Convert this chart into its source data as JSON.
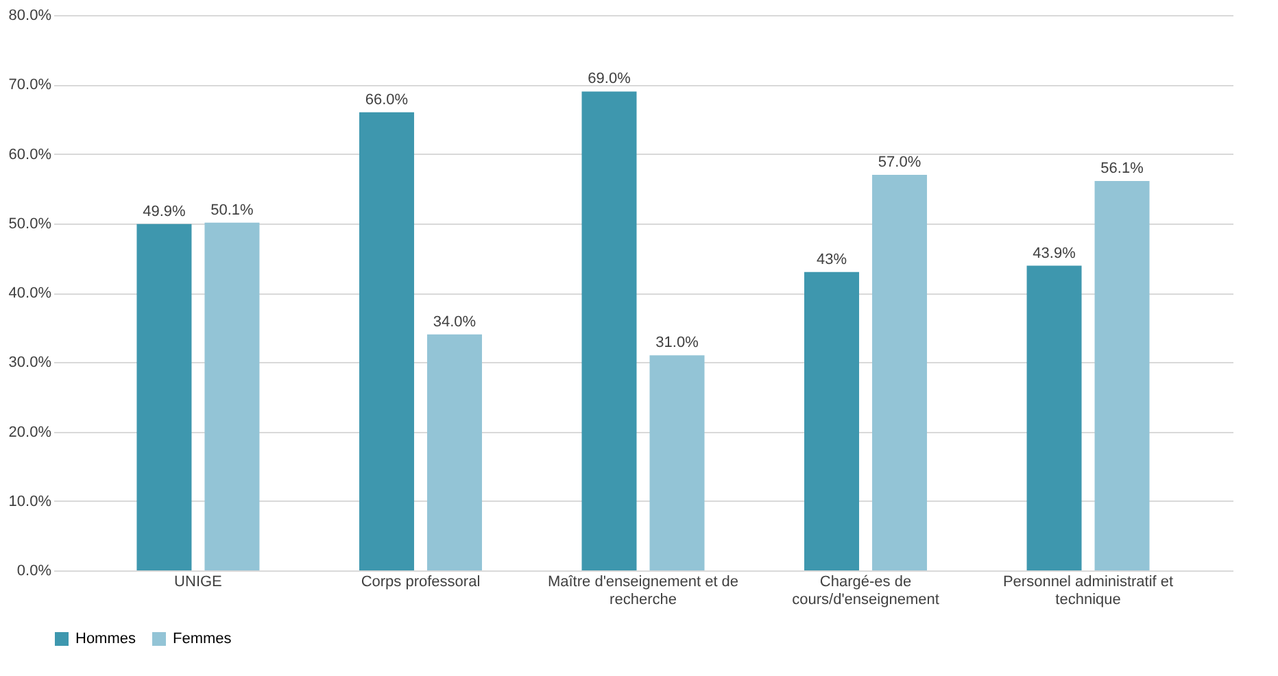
{
  "chart_data": {
    "type": "bar",
    "categories": [
      "UNIGE",
      "Corps professoral",
      "Maître d'enseignement et de recherche",
      "Chargé-es de cours/d'enseignement",
      "Personnel administratif et technique"
    ],
    "series": [
      {
        "name": "Hommes",
        "color": "#3e97ae",
        "values": [
          49.9,
          66.0,
          69.0,
          43,
          43.9
        ],
        "value_labels": [
          "49.9%",
          "66.0%",
          "69.0%",
          "43%",
          "43.9%"
        ]
      },
      {
        "name": "Femmes",
        "color": "#93c4d6",
        "values": [
          50.1,
          34.0,
          31.0,
          57.0,
          56.1
        ],
        "value_labels": [
          "50.1%",
          "34.0%",
          "31.0%",
          "57.0%",
          "56.1%"
        ]
      }
    ],
    "ylim": [
      0,
      80
    ],
    "yticks": [
      {
        "value": 0,
        "label": "0.0%"
      },
      {
        "value": 10,
        "label": "10.0%"
      },
      {
        "value": 20,
        "label": "20.0%"
      },
      {
        "value": 30,
        "label": "30.0%"
      },
      {
        "value": 40,
        "label": "40.0%"
      },
      {
        "value": 50,
        "label": "50.0%"
      },
      {
        "value": 60,
        "label": "60.0%"
      },
      {
        "value": 70,
        "label": "70.0%"
      },
      {
        "value": 80,
        "label": "80.0%"
      }
    ],
    "grid": "y",
    "legend": "bottom"
  }
}
